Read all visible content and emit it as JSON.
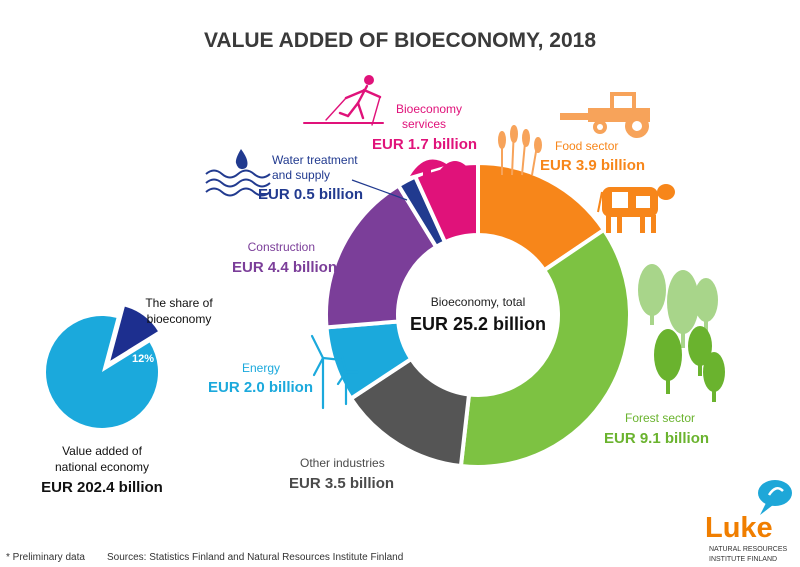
{
  "title": "VALUE ADDED OF BIOECONOMY, 2018",
  "center": {
    "label": "Bioeconomy, total",
    "value": "EUR 25.2 billion"
  },
  "share": {
    "label_line1": "The share of",
    "label_line2": "bioeconomy",
    "percent": "12%",
    "percent_value": 12,
    "color": "#0a9bd4",
    "dark": "#1d2f8f"
  },
  "national": {
    "label_line1": "Value added of",
    "label_line2": "national economy",
    "value": "EUR 202.4 billion"
  },
  "footnote": {
    "preliminary": "* Preliminary data",
    "sources": "Sources: Statistics Finland and Natural Resources Institute Finland"
  },
  "logo": {
    "name": "Luke",
    "sub_line1": "NATURAL RESOURCES",
    "sub_line2": "INSTITUTE FINLAND",
    "color": "#f07e00",
    "bubble": "#1ea7d8"
  },
  "chart_data": {
    "type": "pie",
    "title": "VALUE ADDED OF BIOECONOMY, 2018",
    "unit": "EUR billion",
    "total": 25.2,
    "segments": [
      {
        "name": "Food sector",
        "value": 3.9,
        "value_label": "EUR 3.9 billion",
        "color": "#f7861a",
        "label_color": "#f7861a"
      },
      {
        "name": "Forest sector",
        "value": 9.1,
        "value_label": "EUR 9.1 billion",
        "color": "#7dc242",
        "label_color": "#6ab32e"
      },
      {
        "name": "Other industries",
        "value": 3.5,
        "value_label": "EUR 3.5 billion",
        "color": "#555555",
        "label_color": "#4a4a4a"
      },
      {
        "name": "Energy",
        "value": 2.0,
        "value_label": "EUR 2.0 billion",
        "color": "#1ba9dc",
        "label_color": "#1ba9dc"
      },
      {
        "name": "Construction",
        "value": 4.4,
        "value_label": "EUR 4.4 billion",
        "color": "#7b3e99",
        "label_color": "#7b3e99"
      },
      {
        "name": "Water treatment and supply",
        "name_line1": "Water treatment",
        "name_line2": "and supply",
        "value": 0.5,
        "value_label": "EUR 0.5 billion",
        "color": "#213a8f",
        "label_color": "#213a8f"
      },
      {
        "name": "Bioeconomy services",
        "name_line1": "Bioeconomy",
        "name_line2": "services",
        "value": 1.7,
        "value_label": "EUR 1.7 billion",
        "color": "#e0127a",
        "label_color": "#e0127a"
      }
    ]
  }
}
